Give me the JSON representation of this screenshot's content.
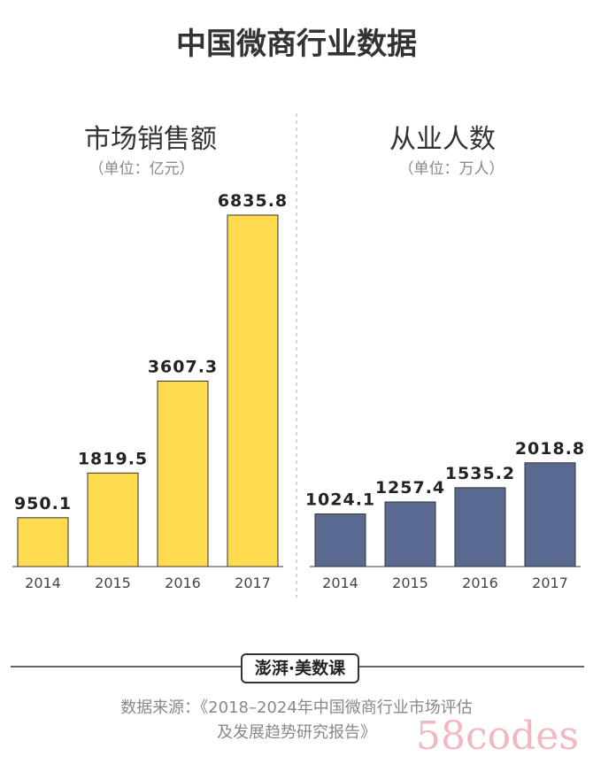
{
  "title": "中国微商行业数据",
  "chart_data": [
    {
      "type": "bar",
      "title": "市场销售额",
      "unit": "（单位：亿元）",
      "categories": [
        "2014",
        "2015",
        "2016",
        "2017"
      ],
      "values": [
        950.1,
        1819.5,
        3607.3,
        6835.8
      ],
      "color": "#FFDB4F"
    },
    {
      "type": "bar",
      "title": "从业人数",
      "unit": "（单位：万人）",
      "categories": [
        "2014",
        "2015",
        "2016",
        "2017"
      ],
      "values": [
        1024.1,
        1257.4,
        1535.2,
        2018.8
      ],
      "color": "#5A6990"
    }
  ],
  "logo": "澎湃·美数课",
  "source_line1": "数据来源：《2018–2024年中国微商行业市场评估",
  "source_line2": "及发展趋势研究报告》",
  "watermark": "58codes"
}
